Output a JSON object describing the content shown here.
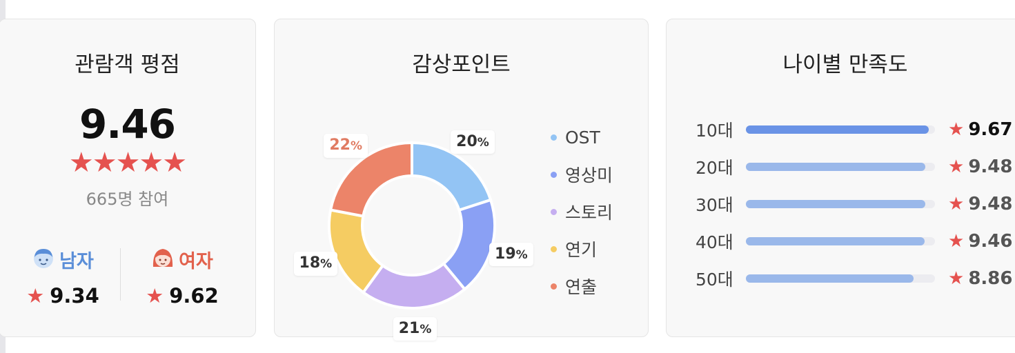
{
  "rating_card": {
    "title": "관람객 평점",
    "score": "9.46",
    "stars": "★★★★★",
    "participants": "665명 참여",
    "male": {
      "label": "남자",
      "star": "★",
      "score": "9.34"
    },
    "female": {
      "label": "여자",
      "star": "★",
      "score": "9.62"
    }
  },
  "points_card": {
    "title": "감상포인트",
    "chart_data": {
      "type": "pie",
      "categories": [
        "OST",
        "영상미",
        "스토리",
        "연기",
        "연출"
      ],
      "values": [
        20,
        19,
        21,
        18,
        22
      ],
      "unit": "%",
      "colors": [
        "#93c4f4",
        "#8aa0f4",
        "#c5aef0",
        "#f5cc62",
        "#ec8469"
      ],
      "highlight": "연출",
      "legend": "right"
    },
    "legend": [
      {
        "label": "OST",
        "color": "#93c4f4"
      },
      {
        "label": "영상미",
        "color": "#8aa0f4"
      },
      {
        "label": "스토리",
        "color": "#c5aef0"
      },
      {
        "label": "연기",
        "color": "#f5cc62"
      },
      {
        "label": "연출",
        "color": "#ec8469"
      }
    ],
    "labels": [
      {
        "value": "20",
        "unit": "%"
      },
      {
        "value": "19",
        "unit": "%"
      },
      {
        "value": "21",
        "unit": "%"
      },
      {
        "value": "18",
        "unit": "%"
      },
      {
        "value": "22",
        "unit": "%"
      }
    ]
  },
  "age_card": {
    "title": "나이별 만족도",
    "rows": [
      {
        "label": "10대",
        "star": "★",
        "score": "9.67",
        "value": 9.67
      },
      {
        "label": "20대",
        "star": "★",
        "score": "9.48",
        "value": 9.48
      },
      {
        "label": "30대",
        "star": "★",
        "score": "9.48",
        "value": 9.48
      },
      {
        "label": "40대",
        "star": "★",
        "score": "9.46",
        "value": 9.46
      },
      {
        "label": "50대",
        "star": "★",
        "score": "8.86",
        "value": 8.86
      }
    ],
    "scale_max": 10,
    "top_color": "#6a93e6",
    "bar_color": "#9ab8ea"
  }
}
